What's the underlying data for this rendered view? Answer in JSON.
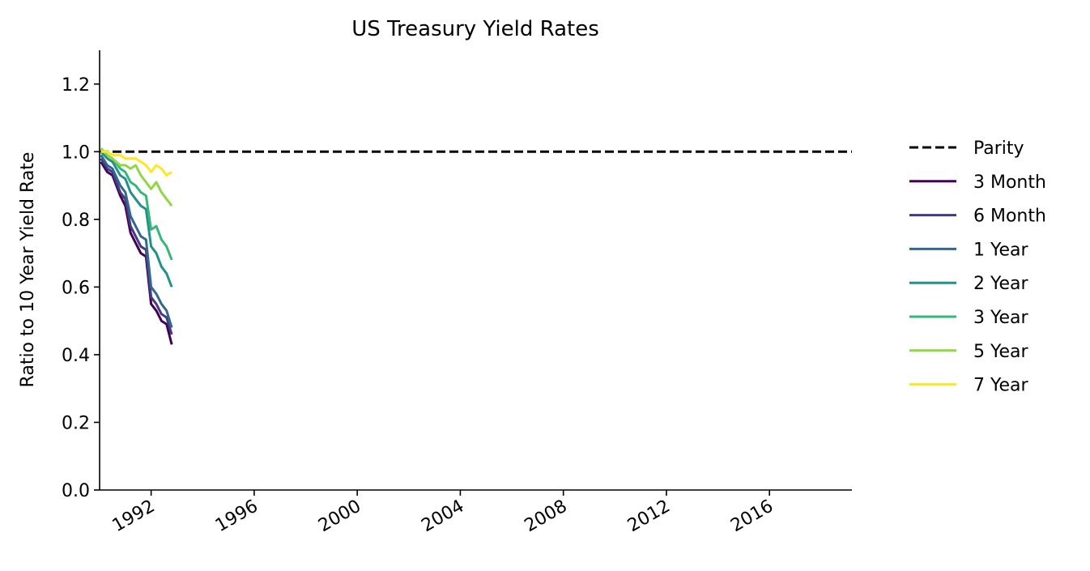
{
  "chart_data": {
    "type": "line",
    "title": "US Treasury Yield Rates",
    "xlabel": "",
    "ylabel": "Ratio to 10 Year Yield Rate",
    "xlim": [
      1990.0,
      2019.2
    ],
    "ylim": [
      0.0,
      1.3
    ],
    "yticks": [
      0.0,
      0.2,
      0.4,
      0.6,
      0.8,
      1.0,
      1.2
    ],
    "ytick_labels": [
      "0.0",
      "0.2",
      "0.4",
      "0.6",
      "0.8",
      "1.0",
      "1.2"
    ],
    "xticks": [
      1992,
      1996,
      2000,
      2004,
      2008,
      2012,
      2016
    ],
    "xtick_labels": [
      "1992",
      "1996",
      "2000",
      "2004",
      "2008",
      "2012",
      "2016"
    ],
    "grid": false,
    "legend_position": "right",
    "parity": {
      "name": "Parity",
      "value": 1.0,
      "color": "#000000",
      "style": "dashed"
    },
    "series": [
      {
        "name": "3 Month",
        "color": "#440154",
        "x": [
          1990.05,
          1990.3,
          1990.5,
          1990.8,
          1991.0,
          1991.2,
          1991.4,
          1991.6,
          1991.8,
          1992.0,
          1992.2,
          1992.4,
          1992.6,
          1992.8
        ],
        "y": [
          0.97,
          0.94,
          0.93,
          0.87,
          0.84,
          0.76,
          0.73,
          0.7,
          0.69,
          0.55,
          0.53,
          0.5,
          0.49,
          0.43
        ]
      },
      {
        "name": "6 Month",
        "color": "#443983",
        "x": [
          1990.05,
          1990.3,
          1990.5,
          1990.8,
          1991.0,
          1991.2,
          1991.4,
          1991.6,
          1991.8,
          1992.0,
          1992.2,
          1992.4,
          1992.6,
          1992.8
        ],
        "y": [
          0.98,
          0.95,
          0.94,
          0.88,
          0.86,
          0.78,
          0.75,
          0.72,
          0.71,
          0.57,
          0.55,
          0.52,
          0.51,
          0.46
        ]
      },
      {
        "name": "1 Year",
        "color": "#31688e",
        "x": [
          1990.05,
          1990.3,
          1990.5,
          1990.8,
          1991.0,
          1991.2,
          1991.4,
          1991.6,
          1991.8,
          1992.0,
          1992.2,
          1992.4,
          1992.6,
          1992.8
        ],
        "y": [
          0.99,
          0.96,
          0.95,
          0.9,
          0.88,
          0.81,
          0.78,
          0.75,
          0.74,
          0.6,
          0.58,
          0.55,
          0.53,
          0.48
        ]
      },
      {
        "name": "2 Year",
        "color": "#21918c",
        "x": [
          1990.05,
          1990.3,
          1990.5,
          1990.8,
          1991.0,
          1991.2,
          1991.4,
          1991.6,
          1991.8,
          1992.0,
          1992.2,
          1992.4,
          1992.6,
          1992.8
        ],
        "y": [
          1.0,
          0.98,
          0.97,
          0.93,
          0.92,
          0.88,
          0.86,
          0.84,
          0.83,
          0.72,
          0.7,
          0.66,
          0.64,
          0.6
        ]
      },
      {
        "name": "3 Year",
        "color": "#35b779",
        "x": [
          1990.05,
          1990.3,
          1990.5,
          1990.8,
          1991.0,
          1991.2,
          1991.4,
          1991.6,
          1991.8,
          1992.0,
          1992.2,
          1992.4,
          1992.6,
          1992.8
        ],
        "y": [
          1.01,
          0.99,
          0.98,
          0.95,
          0.94,
          0.91,
          0.9,
          0.88,
          0.87,
          0.77,
          0.78,
          0.74,
          0.72,
          0.68
        ]
      },
      {
        "name": "5 Year",
        "color": "#90d743",
        "x": [
          1990.05,
          1990.3,
          1990.5,
          1990.8,
          1991.0,
          1991.2,
          1991.4,
          1991.6,
          1991.8,
          1992.0,
          1992.2,
          1992.4,
          1992.6,
          1992.8
        ],
        "y": [
          1.01,
          0.99,
          0.98,
          0.96,
          0.96,
          0.95,
          0.96,
          0.93,
          0.91,
          0.89,
          0.91,
          0.88,
          0.86,
          0.84
        ]
      },
      {
        "name": "7 Year",
        "color": "#fde725",
        "x": [
          1990.05,
          1990.3,
          1990.5,
          1990.8,
          1991.0,
          1991.2,
          1991.4,
          1991.6,
          1991.8,
          1992.0,
          1992.2,
          1992.4,
          1992.6,
          1992.8
        ],
        "y": [
          1.0,
          1.0,
          0.99,
          0.99,
          0.98,
          0.98,
          0.98,
          0.97,
          0.96,
          0.94,
          0.96,
          0.95,
          0.93,
          0.94
        ]
      }
    ]
  }
}
